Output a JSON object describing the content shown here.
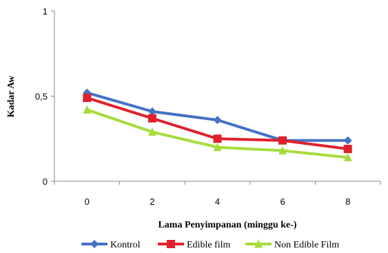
{
  "chart_data": {
    "type": "line",
    "title": "",
    "xlabel": "Lama Penyimpanan (minggu ke-)",
    "ylabel": "Kadar Aw",
    "categories": [
      "0",
      "2",
      "4",
      "6",
      "8"
    ],
    "y_ticks": [
      "0",
      "0,5",
      "1"
    ],
    "ylim": [
      0,
      1
    ],
    "grid": false,
    "legend_position": "bottom",
    "series": [
      {
        "name": "Kontrol",
        "values": [
          0.52,
          0.41,
          0.36,
          0.24,
          0.24
        ],
        "color": "#4472C4",
        "marker": "diamond"
      },
      {
        "name": "Edible film",
        "values": [
          0.49,
          0.37,
          0.25,
          0.24,
          0.19
        ],
        "color": "#E0202B",
        "marker": "square"
      },
      {
        "name": "Non Edible Film",
        "values": [
          0.42,
          0.29,
          0.2,
          0.18,
          0.14
        ],
        "color": "#A6DC3C",
        "marker": "triangle"
      }
    ]
  }
}
